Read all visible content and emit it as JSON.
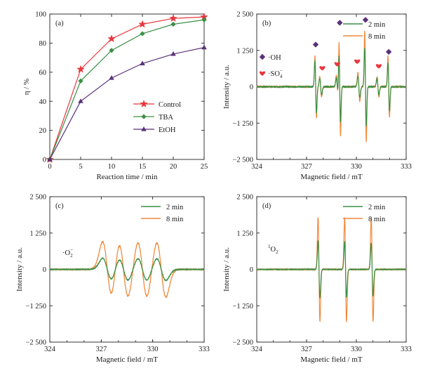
{
  "figure": {
    "panels": [
      "(a)",
      "(b)",
      "(c)",
      "(d)"
    ]
  },
  "chart_data": [
    {
      "panel": "(a)",
      "type": "line",
      "xlabel": "Reaction time / min",
      "ylabel": "η / %",
      "xlim": [
        0,
        25
      ],
      "ylim": [
        0,
        100
      ],
      "xticks": [
        "0",
        "5",
        "10",
        "15",
        "20",
        "25"
      ],
      "yticks": [
        "0",
        "20",
        "40",
        "60",
        "80",
        "100"
      ],
      "x": [
        0,
        5,
        10,
        15,
        20,
        25
      ],
      "legend_position": "center-right",
      "series": [
        {
          "name": "Control",
          "color": "#e8383d",
          "marker": "star",
          "values": [
            0,
            62,
            83,
            93,
            97,
            98
          ]
        },
        {
          "name": "TBA",
          "color": "#3a8f45",
          "marker": "diamond",
          "values": [
            0,
            54,
            75,
            86.5,
            93,
            96
          ]
        },
        {
          "name": "EtOH",
          "color": "#5b3279",
          "marker": "triangle",
          "values": [
            0,
            40,
            56,
            66,
            72.5,
            77
          ]
        }
      ]
    },
    {
      "panel": "(b)",
      "type": "line",
      "xlabel": "Magnetic field / mT",
      "ylabel": "Intensity / a.u.",
      "xlim": [
        324,
        333
      ],
      "ylim": [
        -2500,
        2500
      ],
      "xticks": [
        "324",
        "327",
        "330",
        "333"
      ],
      "yticks": [
        "2 500",
        "1 250",
        "0",
        "−1 250",
        "−2 500"
      ],
      "legend_position": "top-right",
      "series": [
        {
          "name": "2 min",
          "color": "#3a8f45"
        },
        {
          "name": "8 min",
          "color": "#f08a3c"
        }
      ],
      "oh_lines": {
        "fields": [
          327.55,
          329.0,
          330.55,
          331.95
        ],
        "amp_8min": [
          1050,
          1700,
          1900,
          1050
        ],
        "amp_2min": [
          900,
          1200,
          1350,
          850
        ]
      },
      "so4_lines": {
        "fields": [
          327.85,
          328.85,
          330.15,
          331.3
        ],
        "amp_8min": [
          350,
          400,
          500,
          350
        ],
        "amp_2min": [
          280,
          300,
          380,
          280
        ]
      },
      "oh_markers": {
        "fields": [
          327.55,
          329.0,
          330.55,
          331.95
        ],
        "y": [
          1450,
          2200,
          2300,
          1200
        ],
        "color": "#5b3279"
      },
      "so4_markers": {
        "fields": [
          327.95,
          328.85,
          330.05,
          331.35
        ],
        "y": [
          650,
          790,
          880,
          720
        ],
        "color": "#e8383d"
      },
      "legend_symbols": {
        "oh": "·OH",
        "so4_base": "·SO",
        "so4_sub": "4",
        "so4_sup": "−"
      }
    },
    {
      "panel": "(c)",
      "type": "line",
      "xlabel": "Magnetic field / mT",
      "ylabel": "Intensity / a.u.",
      "xlim": [
        324,
        333
      ],
      "ylim": [
        -2500,
        2500
      ],
      "xticks": [
        "324",
        "327",
        "330",
        "333"
      ],
      "yticks": [
        "2 500",
        "1 250",
        "0",
        "−1 250",
        "−2 500"
      ],
      "legend_position": "top-right",
      "series": [
        {
          "name": "2 min",
          "color": "#3a8f45"
        },
        {
          "name": "8 min",
          "color": "#f08a3c"
        }
      ],
      "lines": {
        "fields": [
          327.35,
          328.3,
          329.4,
          330.5
        ],
        "amp_8min": [
          950,
          950,
          950,
          950
        ],
        "amp_2min": [
          380,
          380,
          380,
          380
        ],
        "width": 0.27
      },
      "species_label": {
        "base": "·O",
        "sub": "2",
        "sup": "−"
      }
    },
    {
      "panel": "(d)",
      "type": "line",
      "xlabel": "Magnetic field / mT",
      "ylabel": "Intensity / a.u.",
      "xlim": [
        324,
        333
      ],
      "ylim": [
        -2500,
        2500
      ],
      "xticks": [
        "324",
        "327",
        "330",
        "333"
      ],
      "yticks": [
        "2 500",
        "1 250",
        "0",
        "−1 250",
        "−2 500"
      ],
      "legend_position": "top-right",
      "series": [
        {
          "name": "2 min",
          "color": "#3a8f45"
        },
        {
          "name": "8 min",
          "color": "#f08a3c"
        }
      ],
      "lines": {
        "fields": [
          327.75,
          329.35,
          330.95
        ],
        "amp_8min": [
          1800,
          1800,
          1800
        ],
        "amp_2min": [
          980,
          950,
          900
        ],
        "width": 0.055
      },
      "species_label": {
        "sup": "1",
        "base": "O",
        "sub": "2"
      }
    }
  ]
}
